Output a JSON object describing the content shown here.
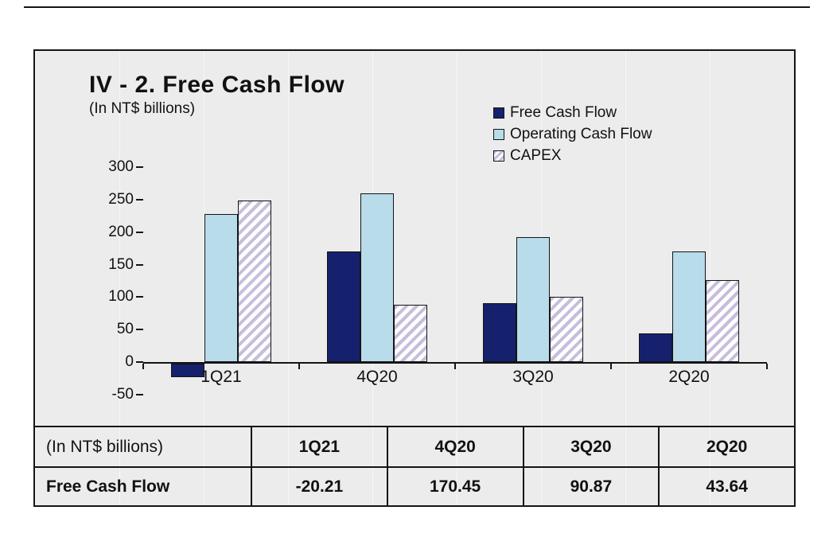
{
  "panel": {
    "title": "IV - 2. Free Cash Flow",
    "subtitle": "(In NT$ billions)"
  },
  "legend": [
    {
      "label": "Free Cash Flow",
      "color": "#16216d",
      "style": "solid"
    },
    {
      "label": "Operating Cash Flow",
      "color": "#b8dcea",
      "style": "solid"
    },
    {
      "label": "CAPEX",
      "color": "#c6bedc",
      "style": "hatch"
    }
  ],
  "chart_data": {
    "type": "bar",
    "title": "IV - 2. Free Cash Flow",
    "ylabel": "(In NT$ billions)",
    "categories": [
      "1Q21",
      "4Q20",
      "3Q20",
      "2Q20"
    ],
    "series": [
      {
        "name": "Free Cash Flow",
        "values": [
          -20.21,
          170.45,
          90.87,
          43.64
        ],
        "color": "#16216d",
        "pattern": "solid"
      },
      {
        "name": "Operating Cash Flow",
        "values": [
          228,
          259,
          192,
          170
        ],
        "color": "#b8dcea",
        "pattern": "solid"
      },
      {
        "name": "CAPEX",
        "values": [
          248,
          88,
          100,
          126
        ],
        "color": "#c6bedc",
        "pattern": "hatch"
      }
    ],
    "ylim": [
      -50,
      300
    ],
    "yticks": [
      300,
      250,
      200,
      150,
      100,
      50,
      0,
      -50
    ],
    "legend_position": "top-right",
    "grid": false
  },
  "table": {
    "header": [
      "(In NT$ billions)",
      "1Q21",
      "4Q20",
      "3Q20",
      "2Q20"
    ],
    "row": [
      "Free Cash Flow",
      "-20.21",
      "170.45",
      "90.87",
      "43.64"
    ]
  }
}
